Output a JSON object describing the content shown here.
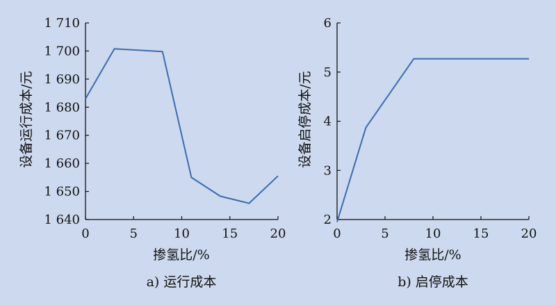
{
  "chart_data": [
    {
      "type": "line",
      "title": "",
      "caption": "a) 运行成本",
      "xlabel": "掺氢比/%",
      "ylabel": "设备运行成本/元",
      "xlim": [
        0,
        20
      ],
      "ylim": [
        1640,
        1710
      ],
      "xticks": [
        0,
        5,
        10,
        15,
        20
      ],
      "xtick_labels": [
        "0",
        "5",
        "10",
        "15",
        "20"
      ],
      "yticks": [
        1640,
        1650,
        1660,
        1670,
        1680,
        1690,
        1700,
        1710
      ],
      "ytick_labels": [
        "1 640",
        "1 650",
        "1 660",
        "1 670",
        "1 680",
        "1 690",
        "1 700",
        "1 710"
      ],
      "grid": false,
      "series": [
        {
          "x": [
            0,
            3,
            8,
            11,
            14,
            17,
            20
          ],
          "values": [
            1683,
            1700.8,
            1699.8,
            1655,
            1648.3,
            1645.8,
            1655.5
          ],
          "color": "#3a6cb0"
        }
      ]
    },
    {
      "type": "line",
      "title": "",
      "caption": "b) 启停成本",
      "xlabel": "掺氢比/%",
      "ylabel": "设备启停成本/元",
      "xlim": [
        0,
        20
      ],
      "ylim": [
        2,
        6
      ],
      "xticks": [
        0,
        5,
        10,
        15,
        20
      ],
      "xtick_labels": [
        "0",
        "5",
        "10",
        "15",
        "20"
      ],
      "yticks": [
        2,
        3,
        4,
        5,
        6
      ],
      "ytick_labels": [
        "2",
        "3",
        "4",
        "5",
        "6"
      ],
      "grid": false,
      "series": [
        {
          "x": [
            0,
            3,
            8,
            20
          ],
          "values": [
            1.95,
            3.87,
            5.27,
            5.27
          ],
          "color": "#3a6cb0"
        }
      ]
    }
  ]
}
